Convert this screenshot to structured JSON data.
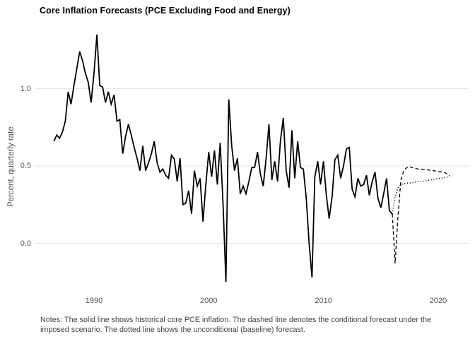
{
  "title": "Core Inflation Forecasts (PCE Excluding Food and Energy)",
  "notes": "Notes: The solid line shows historical core PCE inflation. The dashed line denotes the conditional forecast under the imposed scenario. The dotted line shows the unconditional (baseline) forecast.",
  "colors": {
    "background": "#ffffff",
    "line": "#000000",
    "grid": "#e6e6e6",
    "tick_label": "#555555",
    "title": "#000000",
    "notes": "#444444"
  },
  "chart_data": {
    "type": "line",
    "title": "Core Inflation Forecasts (PCE Excluding Food and Energy)",
    "xlabel": "",
    "ylabel": "Percent, quarterly rate",
    "xlim": [
      1985.1,
      2022.6
    ],
    "ylim": [
      -0.32,
      1.43
    ],
    "grid": "horizontal gridlines only, no axis lines, no tick marks",
    "legend": "none (line styles described in notes text)",
    "x_unit": "year (quarterly data)",
    "y_unit": "percent, quarterly rate",
    "x_ticks": [
      {
        "label": "1990",
        "value": 1990
      },
      {
        "label": "2000",
        "value": 2000
      },
      {
        "label": "2010",
        "value": 2010
      },
      {
        "label": "2020",
        "value": 2020
      }
    ],
    "y_ticks": [
      {
        "label": "0.0",
        "value": 0.0
      },
      {
        "label": "0.5",
        "value": 0.5
      },
      {
        "label": "1.0",
        "value": 1.0
      }
    ],
    "series": [
      {
        "name": "Historical core PCE inflation",
        "style": "solid",
        "color": "#000000",
        "start": 1986.5,
        "step": 0.25,
        "values": [
          0.66,
          0.7,
          0.68,
          0.72,
          0.79,
          0.98,
          0.9,
          1.02,
          1.13,
          1.24,
          1.18,
          1.1,
          1.04,
          0.91,
          1.1,
          1.35,
          1.02,
          1.01,
          0.91,
          0.98,
          0.9,
          0.96,
          0.79,
          0.8,
          0.58,
          0.69,
          0.77,
          0.7,
          0.62,
          0.55,
          0.47,
          0.63,
          0.47,
          0.52,
          0.58,
          0.66,
          0.52,
          0.46,
          0.48,
          0.44,
          0.42,
          0.57,
          0.545,
          0.4,
          0.55,
          0.25,
          0.26,
          0.34,
          0.19,
          0.47,
          0.37,
          0.42,
          0.14,
          0.38,
          0.59,
          0.43,
          0.6,
          0.38,
          0.65,
          0.25,
          -0.25,
          0.93,
          0.63,
          0.47,
          0.55,
          0.32,
          0.37,
          0.32,
          0.4,
          0.49,
          0.49,
          0.59,
          0.45,
          0.37,
          0.55,
          0.77,
          0.41,
          0.53,
          0.4,
          0.66,
          0.81,
          0.47,
          0.36,
          0.73,
          0.42,
          0.66,
          0.49,
          0.48,
          0.29,
          0.0,
          -0.22,
          0.43,
          0.53,
          0.38,
          0.53,
          0.31,
          0.16,
          0.3,
          0.54,
          0.57,
          0.42,
          0.5,
          0.61,
          0.62,
          0.35,
          0.3,
          0.42,
          0.37,
          0.38,
          0.44,
          0.31,
          0.4,
          0.46,
          0.29,
          0.23,
          0.32,
          0.42,
          0.21,
          0.19
        ]
      },
      {
        "name": "Conditional forecast under imposed scenario",
        "style": "dashed",
        "color": "#000000",
        "start": 2016.0,
        "step": 0.25,
        "values": [
          0.19,
          -0.13,
          0.18,
          0.41,
          0.47,
          0.49,
          0.495,
          0.49,
          0.485,
          0.48,
          0.48,
          0.478,
          0.475,
          0.473,
          0.47,
          0.468,
          0.465,
          0.462,
          0.46,
          0.45,
          0.435
        ]
      },
      {
        "name": "Unconditional (baseline) forecast",
        "style": "dotted",
        "color": "#000000",
        "start": 2016.0,
        "step": 0.25,
        "values": [
          0.19,
          0.3,
          0.36,
          0.38,
          0.385,
          0.39,
          0.39,
          0.392,
          0.395,
          0.398,
          0.4,
          0.402,
          0.405,
          0.408,
          0.412,
          0.415,
          0.418,
          0.42,
          0.424,
          0.428,
          0.43
        ]
      }
    ]
  }
}
